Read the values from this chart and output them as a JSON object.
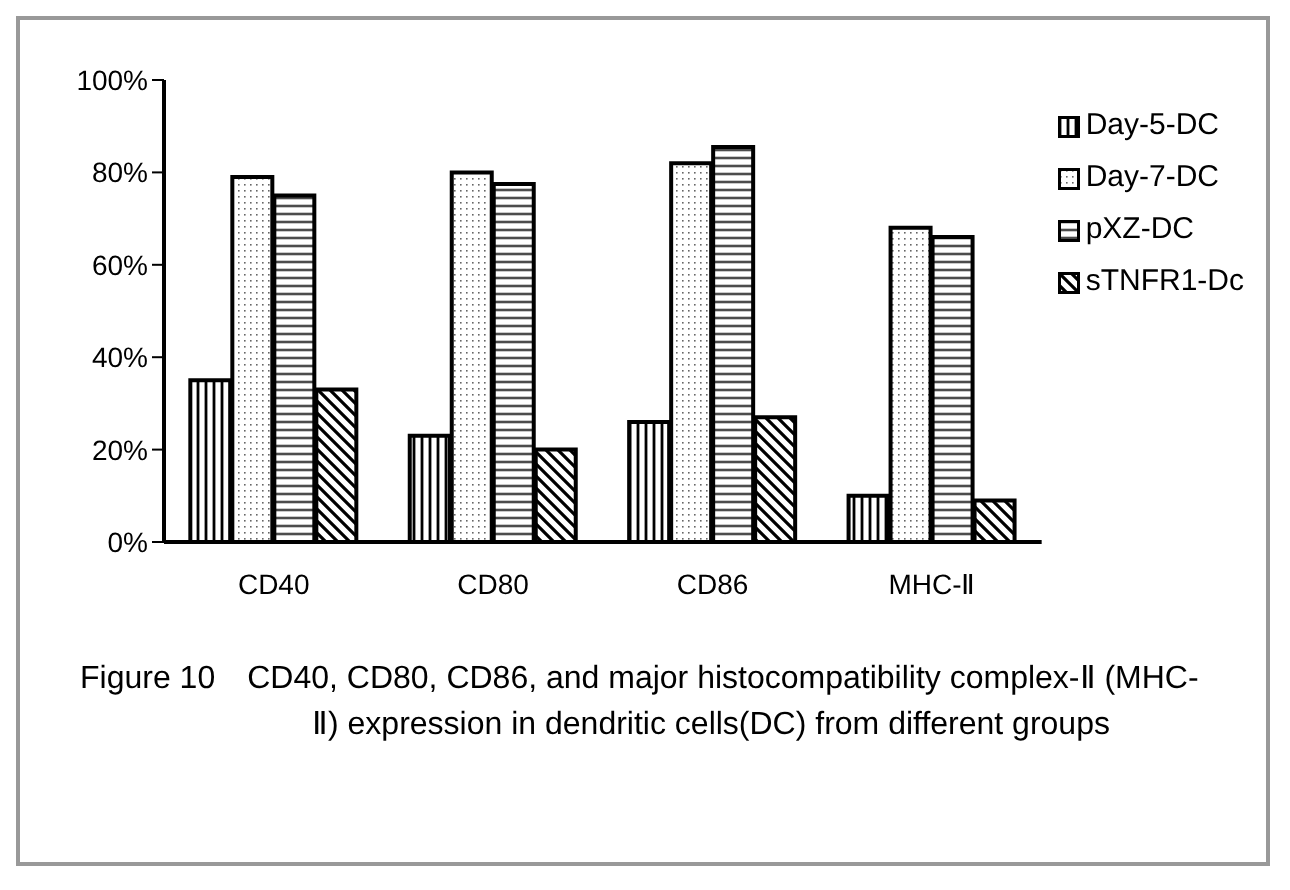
{
  "chart_data": {
    "type": "bar",
    "categories": [
      "CD40",
      "CD80",
      "CD86",
      "MHC-Ⅱ"
    ],
    "series": [
      {
        "name": "Day-5-DC",
        "color": "#000000",
        "values": [
          35,
          23,
          26,
          10
        ]
      },
      {
        "name": "Day-7-DC",
        "color": "#000000",
        "values": [
          79,
          80,
          82,
          68
        ]
      },
      {
        "name": "pXZ-DC",
        "color": "#000000",
        "values": [
          75,
          77.5,
          85.5,
          66
        ]
      },
      {
        "name": "sTNFR1-Dc",
        "color": "#000000",
        "values": [
          33,
          20,
          27,
          9
        ]
      }
    ],
    "ylim": [
      0,
      100
    ],
    "yticks": [
      {
        "value": 0,
        "label": "0%"
      },
      {
        "value": 20,
        "label": "20%"
      },
      {
        "value": 40,
        "label": "40%"
      },
      {
        "value": 60,
        "label": "60%"
      },
      {
        "value": 80,
        "label": "80%"
      },
      {
        "value": 100,
        "label": "100%"
      }
    ],
    "grid": false,
    "legend": "right",
    "annotations": [
      "Figure 10　CD40, CD80, CD86, and major histocompatibility complex-Ⅱ (MHC-Ⅱ) expression in dendritic cells(DC) from different groups"
    ]
  }
}
